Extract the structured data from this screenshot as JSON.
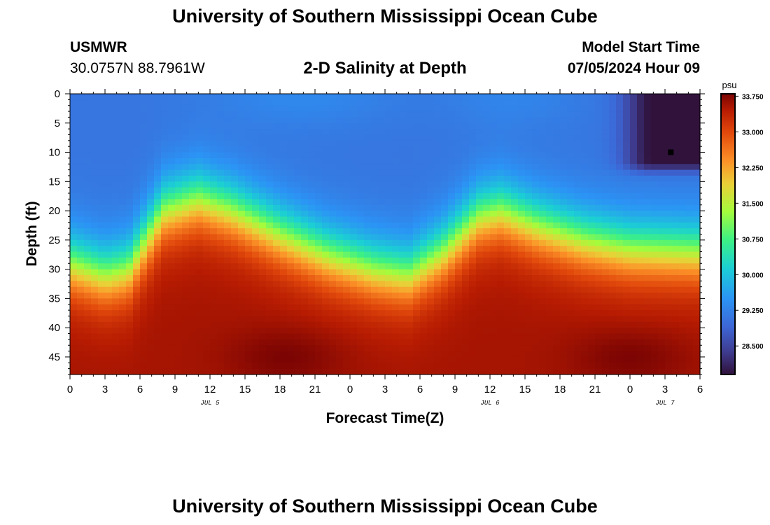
{
  "page": {
    "title_top": "University of Southern Mississippi Ocean Cube",
    "title_bottom": "University of Southern Mississippi Ocean Cube",
    "station_id": "USMWR",
    "station_coords": "30.0757N  88.7961W",
    "plot_title": "2-D Salinity at Depth",
    "model_start_label": "Model Start Time",
    "model_start_value": "07/05/2024 Hour 09"
  },
  "chart_data": {
    "type": "heatmap",
    "title": "2-D Salinity at Depth",
    "xlabel": "Forecast Time(Z)",
    "ylabel": "Depth (ft)",
    "x_range_hours": [
      0,
      54
    ],
    "x_ticks": [
      "0",
      "3",
      "6",
      "9",
      "12",
      "15",
      "18",
      "21",
      "0",
      "3",
      "6",
      "9",
      "12",
      "15",
      "18",
      "21",
      "0",
      "3",
      "6"
    ],
    "x_date_labels": [
      {
        "label": "JUL 5",
        "hour": 12
      },
      {
        "label": "JUL 6",
        "hour": 36
      },
      {
        "label": "JUL 7",
        "hour": 51
      }
    ],
    "y_range_ft": [
      0,
      48
    ],
    "y_ticks": [
      "0",
      "5",
      "10",
      "15",
      "20",
      "25",
      "30",
      "35",
      "40",
      "45"
    ],
    "colorbar": {
      "unit": "psu",
      "ticks": [
        "33.750",
        "33.000",
        "32.250",
        "31.500",
        "30.750",
        "30.000",
        "29.250",
        "28.500"
      ],
      "tick_values": [
        33.75,
        33.0,
        32.25,
        31.5,
        30.75,
        30.0,
        29.25,
        28.5
      ],
      "min": 27.9,
      "max": 33.8
    },
    "marker": {
      "hour": 51.5,
      "depth_ft": 10
    },
    "surface_salinity_psu": 29.1,
    "halocline_depth_ft": [
      {
        "hour": 0,
        "depth": 29
      },
      {
        "hour": 3,
        "depth": 31
      },
      {
        "hour": 5,
        "depth": 30
      },
      {
        "hour": 8,
        "depth": 20
      },
      {
        "hour": 11,
        "depth": 18
      },
      {
        "hour": 14,
        "depth": 20
      },
      {
        "hour": 18,
        "depth": 24
      },
      {
        "hour": 22,
        "depth": 27.5
      },
      {
        "hour": 26,
        "depth": 30
      },
      {
        "hour": 29,
        "depth": 31
      },
      {
        "hour": 32,
        "depth": 27
      },
      {
        "hour": 35,
        "depth": 21
      },
      {
        "hour": 37,
        "depth": 20
      },
      {
        "hour": 40,
        "depth": 22.5
      },
      {
        "hour": 44,
        "depth": 25
      },
      {
        "hour": 48,
        "depth": 26.5
      },
      {
        "hour": 54,
        "depth": 27
      }
    ],
    "fresh_patch": {
      "hour_center": 52.5,
      "depth_center_ft": 5,
      "min_psu": 27.9
    },
    "high_salinity_cores": [
      {
        "hour": 18.5,
        "depth_ft": 45,
        "psu": 33.8
      },
      {
        "hour": 48,
        "depth_ft": 45,
        "psu": 33.8
      }
    ]
  }
}
